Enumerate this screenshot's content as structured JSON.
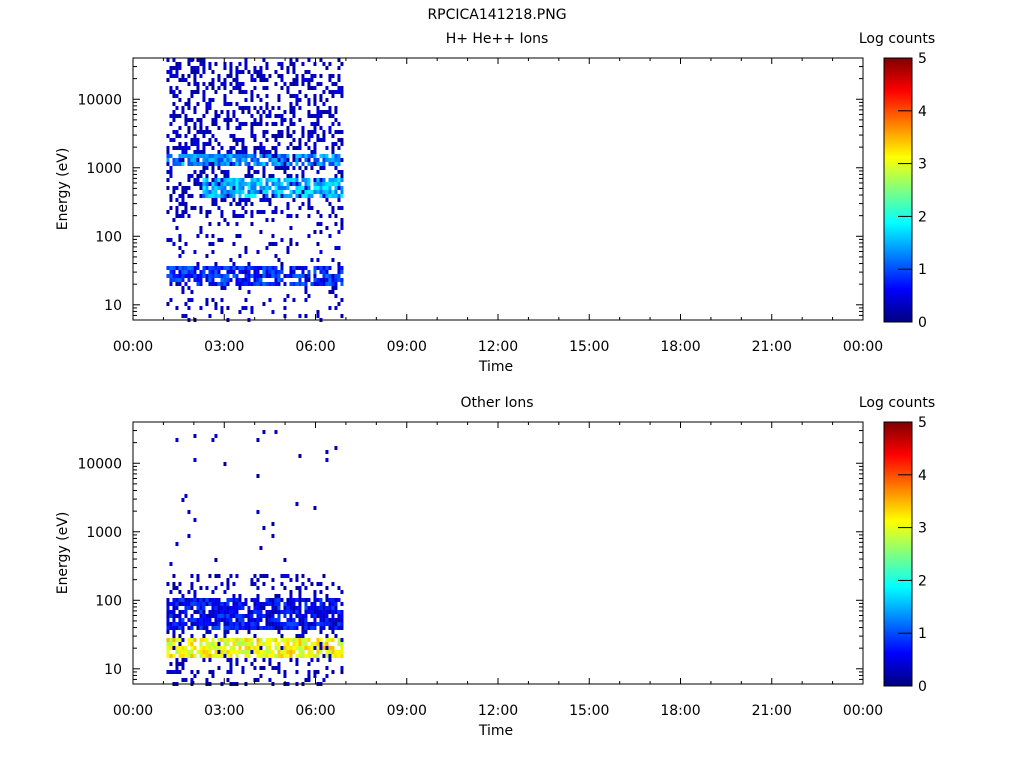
{
  "page_title": "RPCICA141218.PNG",
  "chart_data": [
    {
      "type": "heatmap",
      "title": "H+ He++ Ions",
      "xlabel": "Time",
      "ylabel": "Energy (eV)",
      "x_ticks": [
        "00:00",
        "03:00",
        "06:00",
        "09:00",
        "12:00",
        "15:00",
        "18:00",
        "21:00",
        "00:00"
      ],
      "y_ticks": [
        10,
        100,
        1000,
        10000
      ],
      "y_tick_labels": [
        "10",
        "100",
        "1000",
        "10000"
      ],
      "y_scale": "log",
      "xlim_hours": [
        0,
        24
      ],
      "ylim_eV": [
        6,
        40000
      ],
      "data_time_range_hours": [
        1.1,
        6.9
      ],
      "colorbar": {
        "label": "Log counts",
        "ticks": [
          "0",
          "1",
          "2",
          "3",
          "4",
          "5"
        ],
        "range": [
          0,
          5
        ],
        "colormap": "jet"
      },
      "bands": [
        {
          "t_start_h": 1.1,
          "t_end_h": 6.9,
          "e_low_eV": 1200,
          "e_high_eV": 1800,
          "log_counts": 1.3
        },
        {
          "t_start_h": 2.2,
          "t_end_h": 6.9,
          "e_low_eV": 400,
          "e_high_eV": 800,
          "log_counts": 1.5
        },
        {
          "t_start_h": 1.1,
          "t_end_h": 6.9,
          "e_low_eV": 20,
          "e_high_eV": 40,
          "log_counts": 0.8
        }
      ]
    },
    {
      "type": "heatmap",
      "title": "Other Ions",
      "xlabel": "Time",
      "ylabel": "Energy (eV)",
      "x_ticks": [
        "00:00",
        "03:00",
        "06:00",
        "09:00",
        "12:00",
        "15:00",
        "18:00",
        "21:00",
        "00:00"
      ],
      "y_ticks": [
        10,
        100,
        1000,
        10000
      ],
      "y_tick_labels": [
        "10",
        "100",
        "1000",
        "10000"
      ],
      "y_scale": "log",
      "xlim_hours": [
        0,
        24
      ],
      "ylim_eV": [
        6,
        40000
      ],
      "data_time_range_hours": [
        1.1,
        6.9
      ],
      "colorbar": {
        "label": "Log counts",
        "ticks": [
          "0",
          "1",
          "2",
          "3",
          "4",
          "5"
        ],
        "range": [
          0,
          5
        ],
        "colormap": "jet"
      },
      "bands": [
        {
          "t_start_h": 1.1,
          "t_end_h": 6.9,
          "e_low_eV": 15,
          "e_high_eV": 32,
          "log_counts": 3.1
        },
        {
          "t_start_h": 1.1,
          "t_end_h": 6.9,
          "e_low_eV": 40,
          "e_high_eV": 120,
          "log_counts": 0.6
        }
      ]
    }
  ]
}
